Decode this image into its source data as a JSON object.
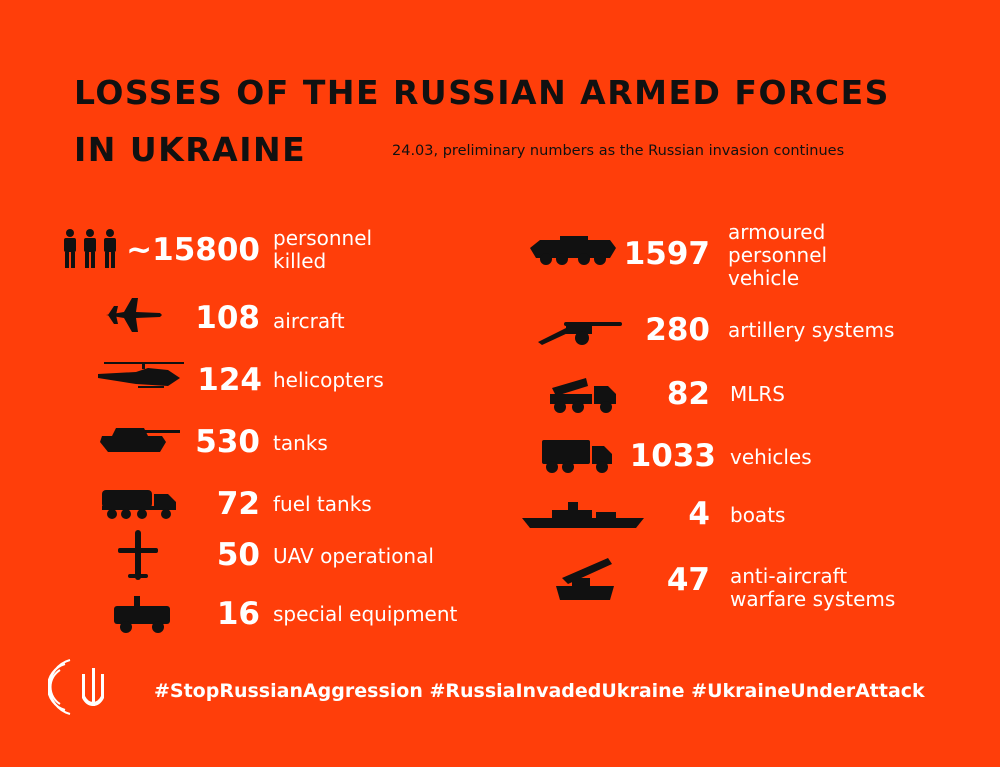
{
  "header": {
    "title_line1": "LOSSES OF THE RUSSIAN ARMED FORCES",
    "title_line2": "IN UKRAINE",
    "subtitle": "24.03, preliminary numbers as the Russian invasion continues"
  },
  "left_items": [
    {
      "icon": "soldiers-icon",
      "value": "~15800",
      "label_line1": "personnel",
      "label_line2": "killed"
    },
    {
      "icon": "fighter-jet-icon",
      "value": "108",
      "label_line1": "aircraft",
      "label_line2": ""
    },
    {
      "icon": "helicopter-icon",
      "value": "124",
      "label_line1": "helicopters",
      "label_line2": ""
    },
    {
      "icon": "tank-icon",
      "value": "530",
      "label_line1": "tanks",
      "label_line2": ""
    },
    {
      "icon": "fuel-truck-icon",
      "value": "72",
      "label_line1": "fuel tanks",
      "label_line2": ""
    },
    {
      "icon": "drone-icon",
      "value": "50",
      "label_line1": "UAV operational",
      "label_line2": ""
    },
    {
      "icon": "special-vehicle-icon",
      "value": "16",
      "label_line1": "special equipment",
      "label_line2": ""
    }
  ],
  "right_items": [
    {
      "icon": "apc-icon",
      "value": "1597",
      "label_line1": "armoured",
      "label_line2": "personnel",
      "label_line3": "vehicle"
    },
    {
      "icon": "artillery-icon",
      "value": "280",
      "label_line1": "artillery systems",
      "label_line2": "",
      "label_line3": ""
    },
    {
      "icon": "mlrs-icon",
      "value": "82",
      "label_line1": "MLRS",
      "label_line2": "",
      "label_line3": ""
    },
    {
      "icon": "truck-icon",
      "value": "1033",
      "label_line1": "vehicles",
      "label_line2": "",
      "label_line3": ""
    },
    {
      "icon": "warship-icon",
      "value": "4",
      "label_line1": "boats",
      "label_line2": "",
      "label_line3": ""
    },
    {
      "icon": "anti-aircraft-icon",
      "value": "47",
      "label_line1": "anti-aircraft",
      "label_line2": "warfare systems",
      "label_line3": ""
    }
  ],
  "footer": {
    "hashtags": "#StopRussianAggression #RussiaInvadedUkraine #UkraineUnderAttack",
    "logo_icon": "trident-logo-icon"
  },
  "colors": {
    "background": "#FF3E0A",
    "title": "#111111",
    "icons": "#111111",
    "text": "#ffffff"
  }
}
